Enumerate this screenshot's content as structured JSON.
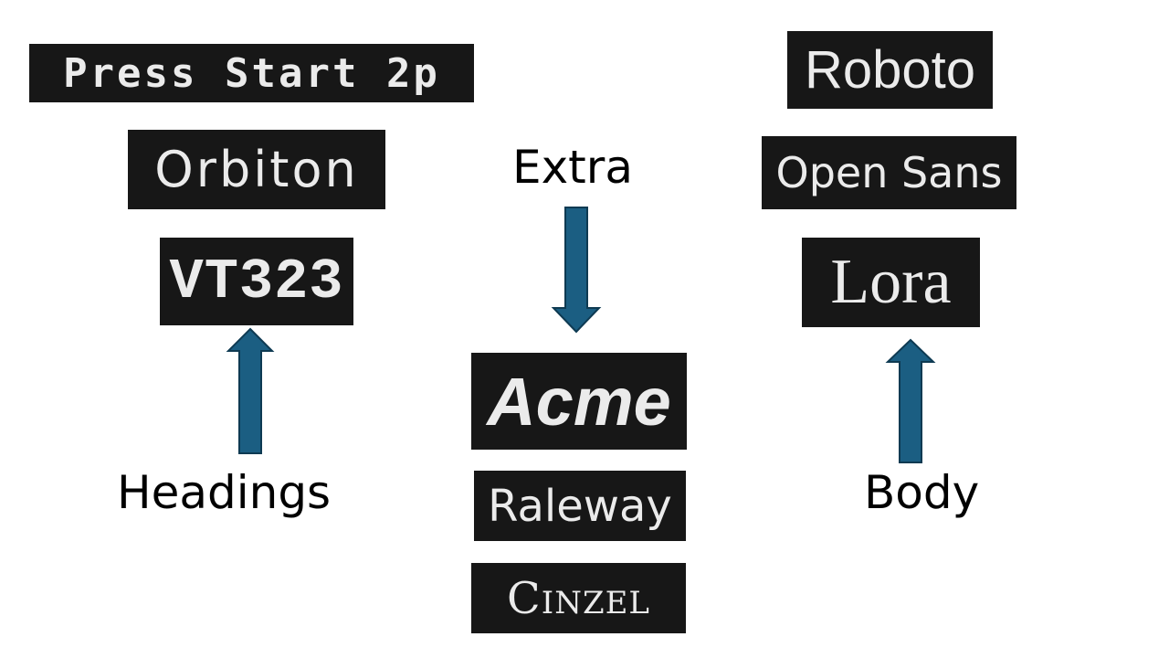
{
  "fonts": {
    "headings": {
      "label": "Headings",
      "items": [
        "Press Start 2p",
        "Orbiton",
        "VT323"
      ]
    },
    "extra": {
      "label": "Extra",
      "items": [
        "Acme",
        "Raleway",
        "Cinzel"
      ]
    },
    "body": {
      "label": "Body",
      "items": [
        "Roboto",
        "Open Sans",
        "Lora"
      ]
    }
  },
  "colors": {
    "chip_background": "#171717",
    "chip_text": "#ebebeb",
    "arrow_fill": "#1b5e82",
    "arrow_stroke": "#0e3a52"
  }
}
